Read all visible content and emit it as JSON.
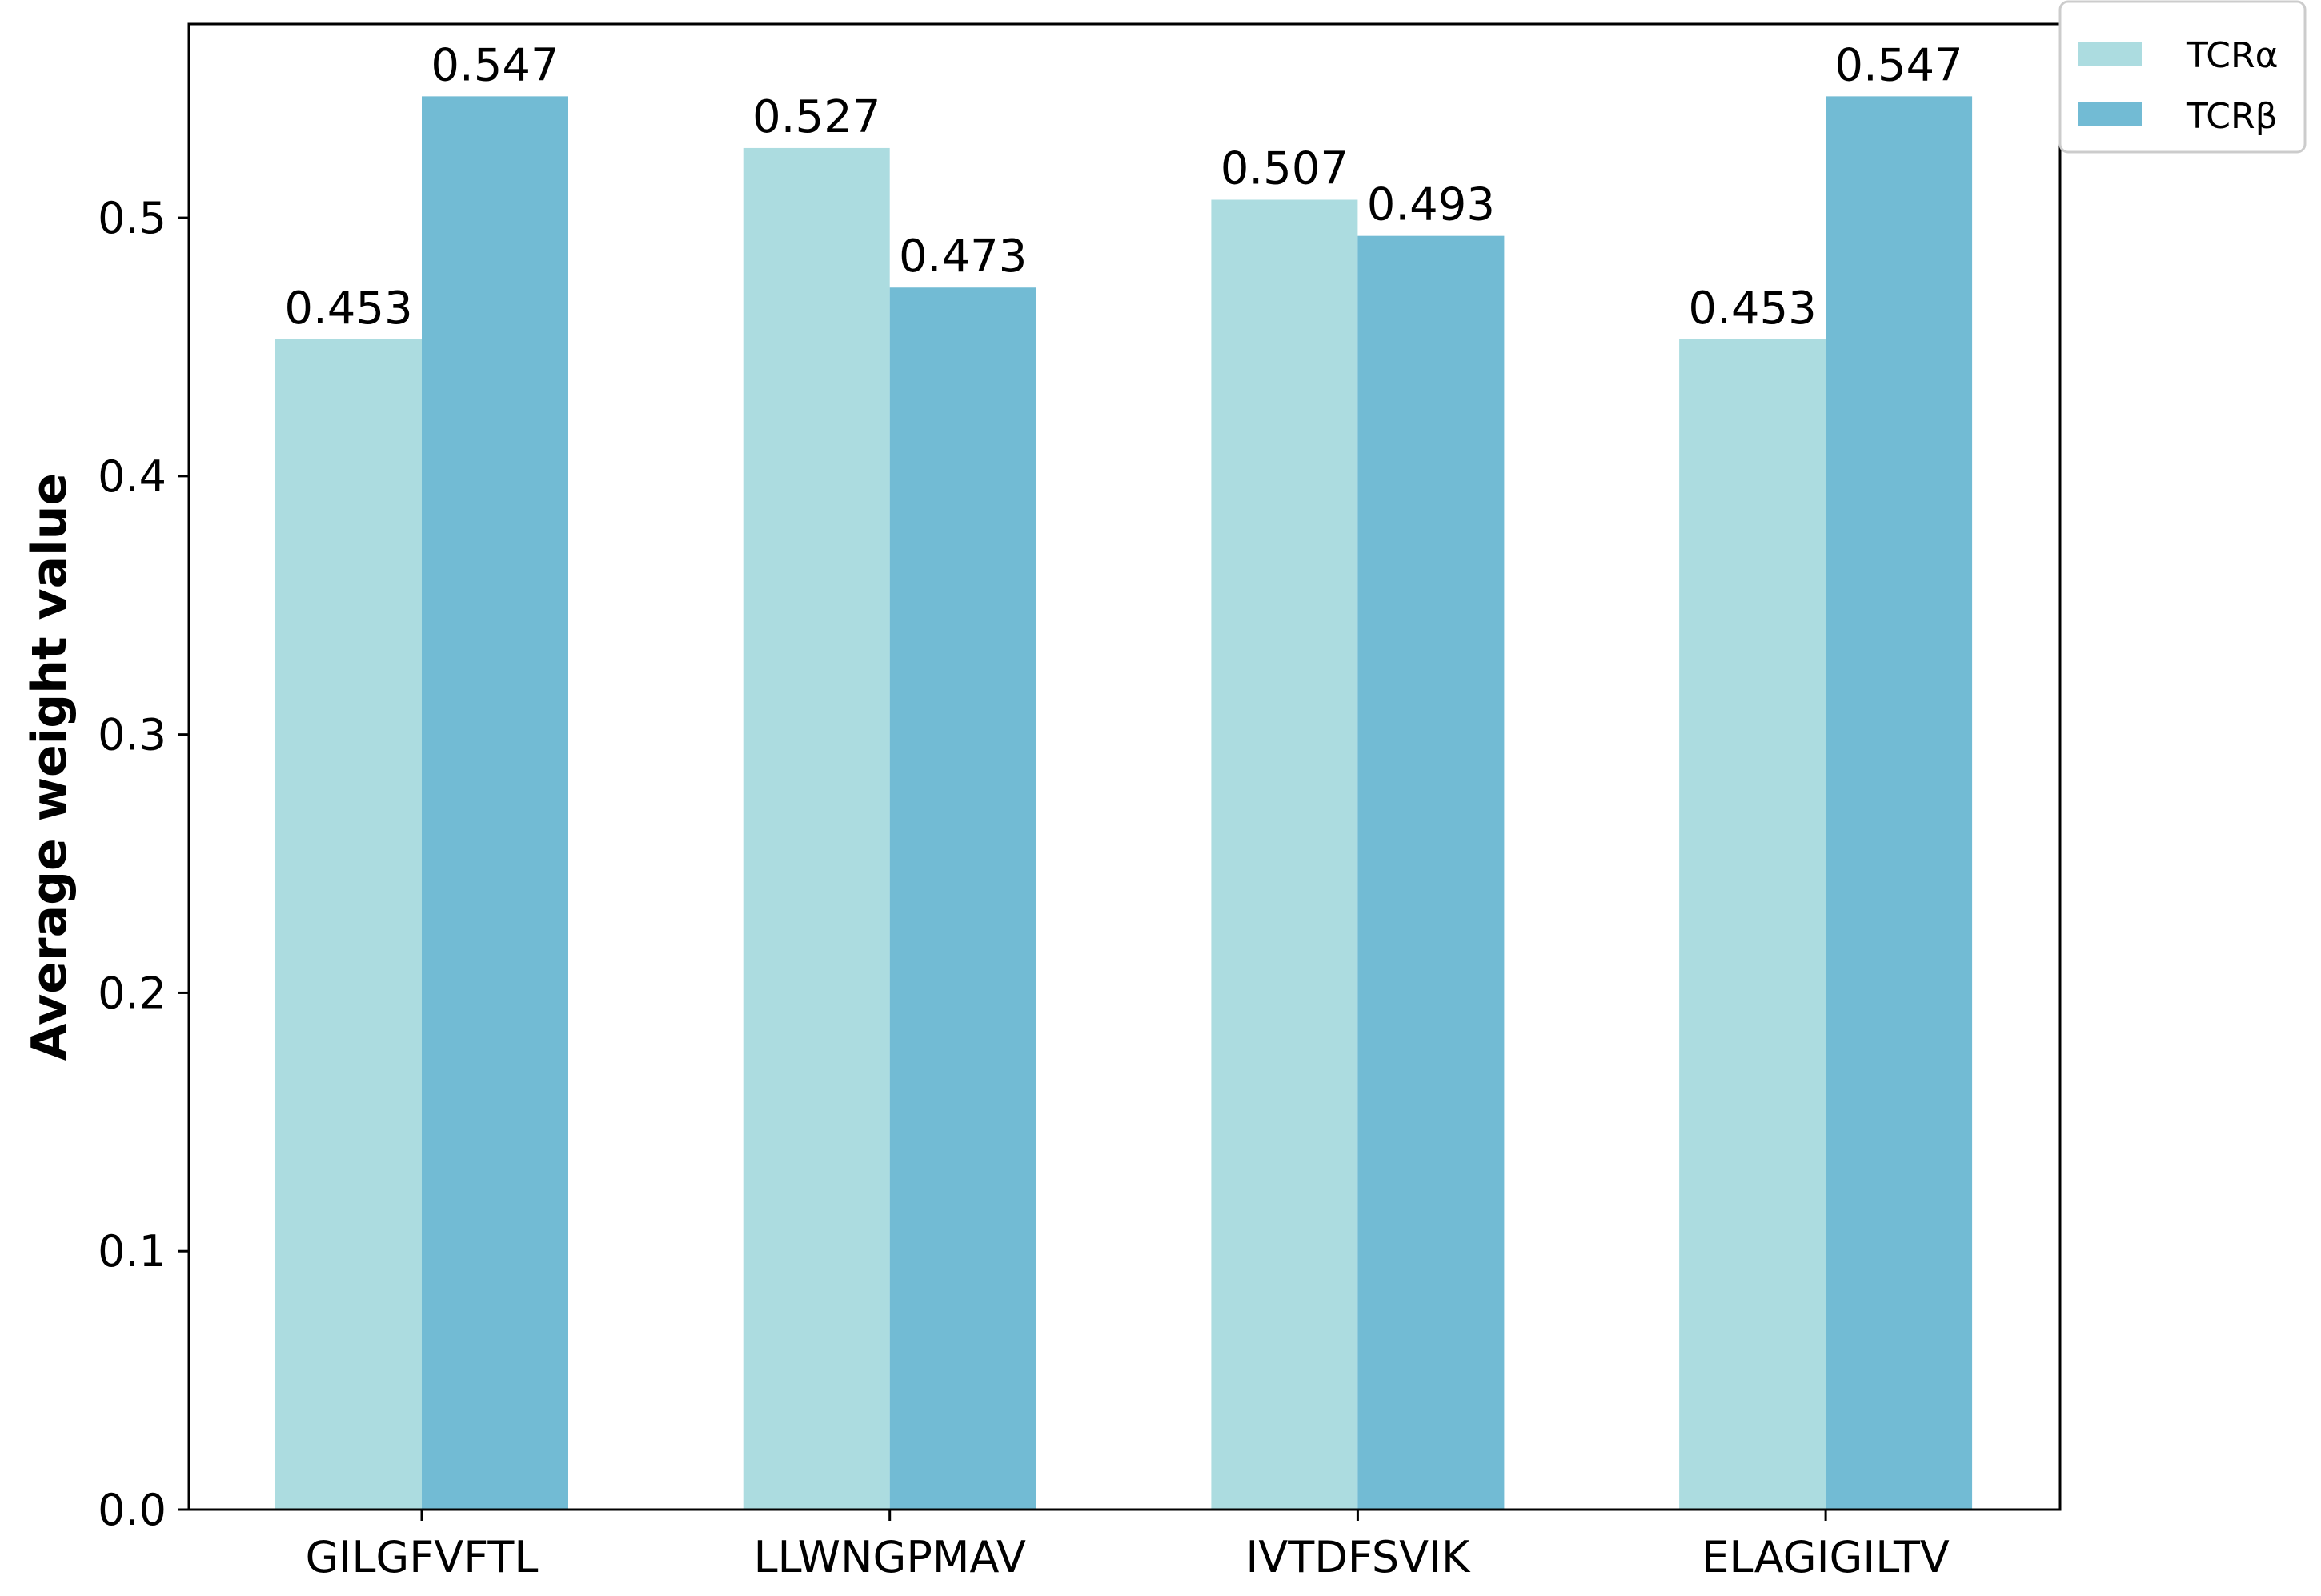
{
  "chart_data": {
    "type": "bar",
    "categories": [
      "GILGFVFTL",
      "LLWNGPMAV",
      "IVTDFSVIK",
      "ELAGIGILTV"
    ],
    "series": [
      {
        "name": "TCRα",
        "values": [
          0.453,
          0.527,
          0.507,
          0.453
        ],
        "color": "#acdce0"
      },
      {
        "name": "TCRβ",
        "values": [
          0.547,
          0.473,
          0.493,
          0.547
        ],
        "color": "#72bbd4"
      }
    ],
    "data_labels": [
      [
        "0.453",
        "0.527",
        "0.507",
        "0.453"
      ],
      [
        "0.547",
        "0.473",
        "0.493",
        "0.547"
      ]
    ],
    "title": "",
    "xlabel": "",
    "ylabel": "Average weight value",
    "ylim": [
      0,
      0.575
    ],
    "yticks": [
      0.0,
      0.1,
      0.2,
      0.3,
      0.4,
      0.5
    ],
    "ytick_labels": [
      "0.0",
      "0.1",
      "0.2",
      "0.3",
      "0.4",
      "0.5"
    ],
    "grid": false,
    "legend_position": "top-right outside"
  }
}
